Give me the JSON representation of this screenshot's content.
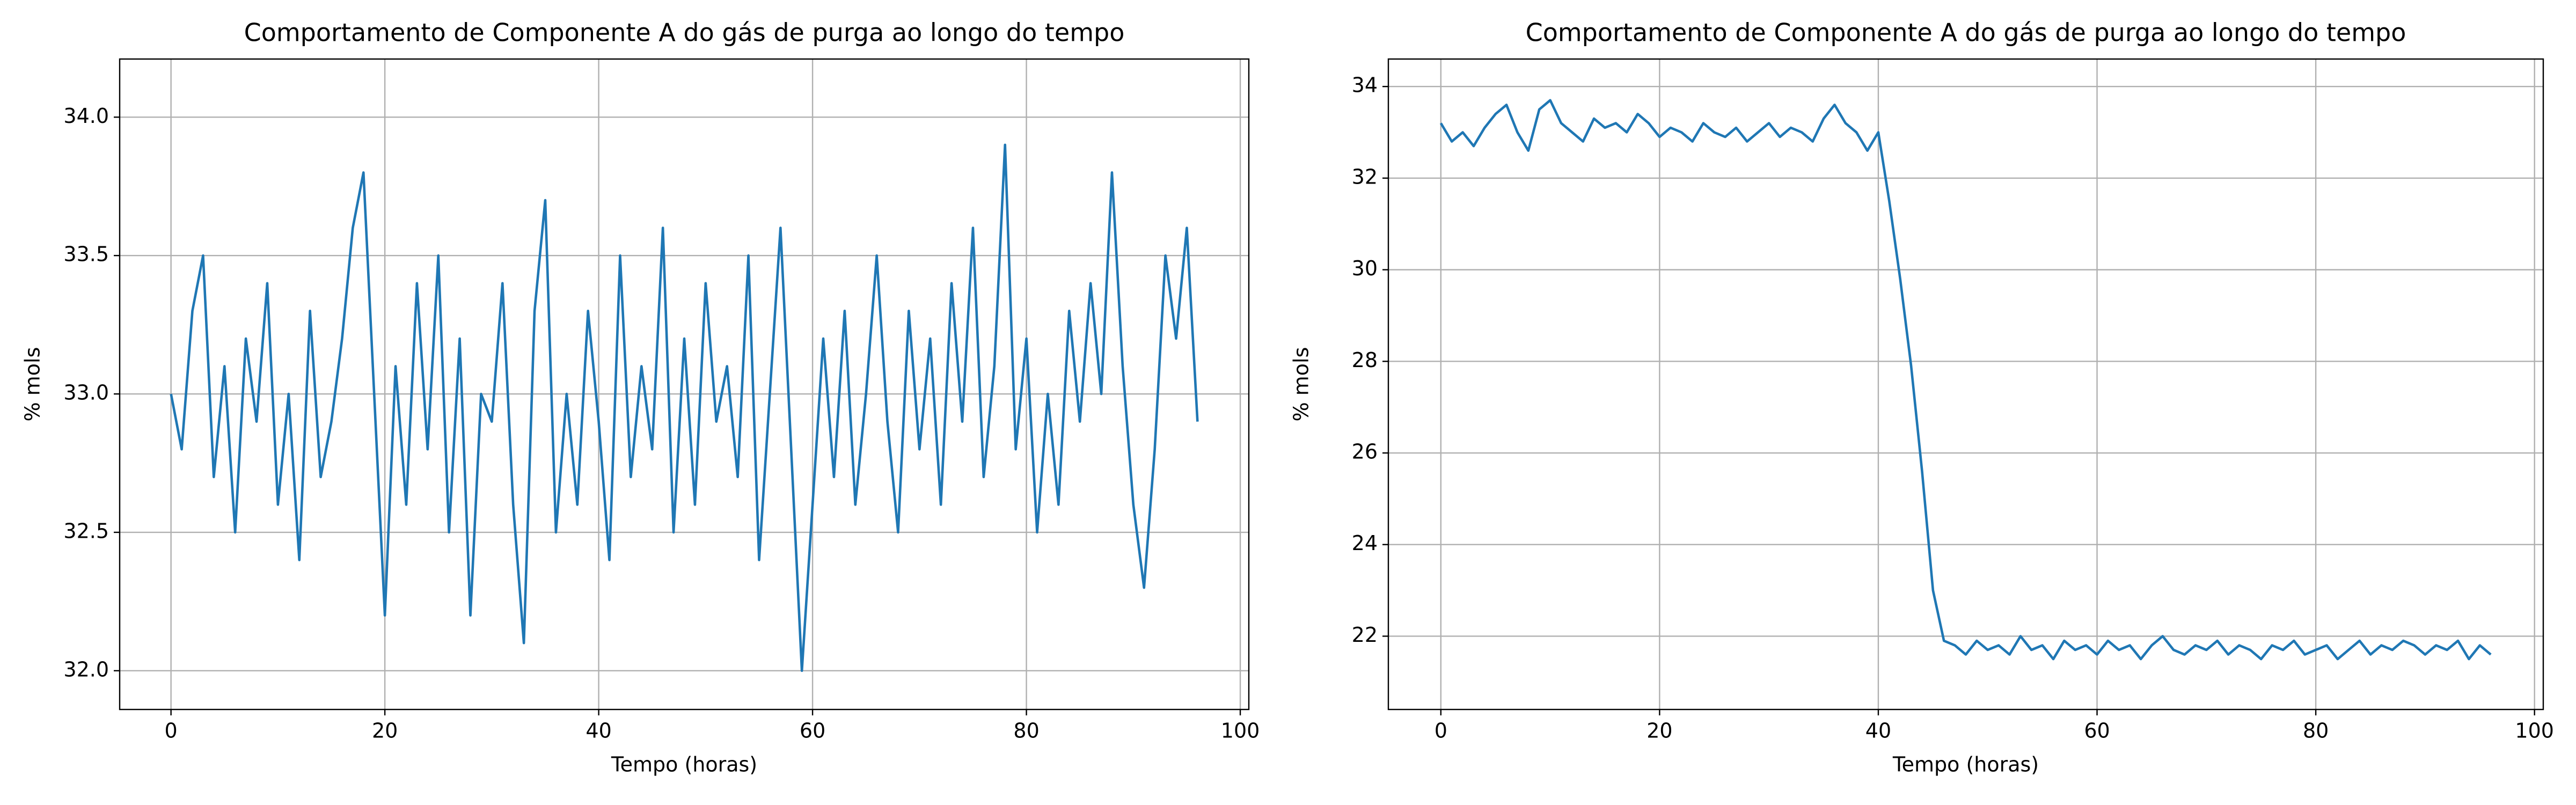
{
  "chart_data": [
    {
      "type": "line",
      "title": "Comportamento de Componente A do gás de purga ao longo do tempo",
      "xlabel": "Tempo (horas)",
      "ylabel": "% mols",
      "grid": true,
      "xlim": [
        -4.8,
        100.8
      ],
      "ylim": [
        31.86,
        34.21
      ],
      "xticks": [
        0,
        20,
        40,
        60,
        80,
        100
      ],
      "yticks": [
        {
          "value": 32.0,
          "label": "32.0"
        },
        32.5,
        {
          "value": 33.0,
          "label": "33.0"
        },
        33.5,
        {
          "value": 34.0,
          "label": "34.0"
        }
      ],
      "x": [
        0,
        1,
        2,
        3,
        4,
        5,
        6,
        7,
        8,
        9,
        10,
        11,
        12,
        13,
        14,
        15,
        16,
        17,
        18,
        19,
        20,
        21,
        22,
        23,
        24,
        25,
        26,
        27,
        28,
        29,
        30,
        31,
        32,
        33,
        34,
        35,
        36,
        37,
        38,
        39,
        40,
        41,
        42,
        43,
        44,
        45,
        46,
        47,
        48,
        49,
        50,
        51,
        52,
        53,
        54,
        55,
        56,
        57,
        58,
        59,
        60,
        61,
        62,
        63,
        64,
        65,
        66,
        67,
        68,
        69,
        70,
        71,
        72,
        73,
        74,
        75,
        76,
        77,
        78,
        79,
        80,
        81,
        82,
        83,
        84,
        85,
        86,
        87,
        88,
        89,
        90,
        91,
        92,
        93,
        94,
        95,
        96
      ],
      "series": [
        {
          "color": "#1f77b4",
          "values": [
            33.0,
            32.8,
            33.3,
            33.5,
            32.7,
            33.1,
            32.5,
            33.2,
            32.9,
            33.4,
            32.6,
            33.0,
            32.4,
            33.3,
            32.7,
            32.9,
            33.2,
            33.6,
            33.8,
            33.0,
            32.2,
            33.1,
            32.6,
            33.4,
            32.8,
            33.5,
            32.5,
            33.2,
            32.2,
            33.0,
            32.9,
            33.4,
            32.6,
            32.1,
            33.3,
            33.7,
            32.5,
            33.0,
            32.6,
            33.3,
            32.9,
            32.4,
            33.5,
            32.7,
            33.1,
            32.8,
            33.6,
            32.5,
            33.2,
            32.6,
            33.4,
            32.9,
            33.1,
            32.7,
            33.5,
            32.4,
            33.0,
            33.6,
            32.8,
            32.0,
            32.6,
            33.2,
            32.7,
            33.3,
            32.6,
            33.0,
            33.5,
            32.9,
            32.5,
            33.3,
            32.8,
            33.2,
            32.6,
            33.4,
            32.9,
            33.6,
            32.7,
            33.1,
            33.9,
            32.8,
            33.2,
            32.5,
            33.0,
            32.6,
            33.3,
            32.9,
            33.4,
            33.0,
            33.8,
            33.1,
            32.6,
            32.3,
            32.8,
            33.5,
            33.2,
            33.6,
            32.9
          ]
        }
      ]
    },
    {
      "type": "line",
      "title": "Comportamento de Componente A do gás de purga ao longo do tempo",
      "xlabel": "Tempo (horas)",
      "ylabel": "% mols",
      "grid": true,
      "xlim": [
        -4.8,
        100.8
      ],
      "ylim": [
        20.4,
        34.6
      ],
      "xticks": [
        0,
        20,
        40,
        60,
        80,
        100
      ],
      "yticks": [
        22,
        24,
        26,
        28,
        30,
        32,
        34
      ],
      "x": [
        0,
        1,
        2,
        3,
        4,
        5,
        6,
        7,
        8,
        9,
        10,
        11,
        12,
        13,
        14,
        15,
        16,
        17,
        18,
        19,
        20,
        21,
        22,
        23,
        24,
        25,
        26,
        27,
        28,
        29,
        30,
        31,
        32,
        33,
        34,
        35,
        36,
        37,
        38,
        39,
        40,
        41,
        42,
        43,
        44,
        45,
        46,
        47,
        48,
        49,
        50,
        51,
        52,
        53,
        54,
        55,
        56,
        57,
        58,
        59,
        60,
        61,
        62,
        63,
        64,
        65,
        66,
        67,
        68,
        69,
        70,
        71,
        72,
        73,
        74,
        75,
        76,
        77,
        78,
        79,
        80,
        81,
        82,
        83,
        84,
        85,
        86,
        87,
        88,
        89,
        90,
        91,
        92,
        93,
        94,
        95,
        96
      ],
      "series": [
        {
          "color": "#1f77b4",
          "values": [
            33.2,
            32.8,
            33.0,
            32.7,
            33.1,
            33.4,
            33.6,
            33.0,
            32.6,
            33.5,
            33.7,
            33.2,
            33.0,
            32.8,
            33.3,
            33.1,
            33.2,
            33.0,
            33.4,
            33.2,
            32.9,
            33.1,
            33.0,
            32.8,
            33.2,
            33.0,
            32.9,
            33.1,
            32.8,
            33.0,
            33.2,
            32.9,
            33.1,
            33.0,
            32.8,
            33.3,
            33.6,
            33.2,
            33.0,
            32.6,
            33.0,
            31.5,
            29.8,
            27.9,
            25.6,
            23.0,
            21.9,
            21.8,
            21.6,
            21.9,
            21.7,
            21.8,
            21.6,
            22.0,
            21.7,
            21.8,
            21.5,
            21.9,
            21.7,
            21.8,
            21.6,
            21.9,
            21.7,
            21.8,
            21.5,
            21.8,
            22.0,
            21.7,
            21.6,
            21.8,
            21.7,
            21.9,
            21.6,
            21.8,
            21.7,
            21.5,
            21.8,
            21.7,
            21.9,
            21.6,
            21.7,
            21.8,
            21.5,
            21.7,
            21.9,
            21.6,
            21.8,
            21.7,
            21.9,
            21.8,
            21.6,
            21.8,
            21.7,
            21.9,
            21.5,
            21.8,
            21.6
          ]
        }
      ]
    }
  ]
}
